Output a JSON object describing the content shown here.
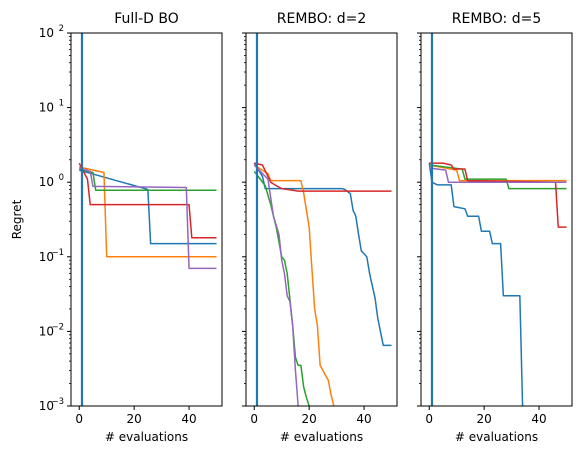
{
  "chart_data": [
    {
      "type": "line",
      "title": "Full-D BO",
      "xlabel": "# evaluations",
      "ylabel": "Regret",
      "xlim": [
        -3,
        52
      ],
      "ylim": [
        0.001,
        100
      ],
      "yscale": "log",
      "xticks": [
        0,
        20,
        40
      ],
      "yticks": [
        0.001,
        0.01,
        0.1,
        1,
        10,
        100
      ],
      "ytick_labels": [
        [
          "10",
          "−3"
        ],
        [
          "10",
          "−2"
        ],
        [
          "10",
          "−1"
        ],
        [
          "10",
          "0"
        ],
        [
          "10",
          "1"
        ],
        [
          "10",
          "2"
        ]
      ],
      "show_ytick_labels": true,
      "vline_x": 1,
      "series": [
        {
          "color": "#1f77b4",
          "x": [
            0,
            25,
            26,
            50
          ],
          "y": [
            1.45,
            0.8,
            0.15,
            0.15
          ]
        },
        {
          "color": "#ff7f0e",
          "x": [
            0,
            9,
            10,
            50
          ],
          "y": [
            1.6,
            1.35,
            0.1,
            0.1
          ]
        },
        {
          "color": "#2ca02c",
          "x": [
            0,
            5,
            6,
            50
          ],
          "y": [
            1.5,
            1.35,
            0.78,
            0.78
          ]
        },
        {
          "color": "#d62728",
          "x": [
            0,
            3,
            4,
            40,
            41,
            50
          ],
          "y": [
            1.8,
            1.1,
            0.5,
            0.5,
            0.18,
            0.18
          ]
        },
        {
          "color": "#9467bd",
          "x": [
            0,
            4,
            5,
            39,
            40,
            50
          ],
          "y": [
            1.55,
            1.4,
            0.88,
            0.85,
            0.07,
            0.07
          ]
        }
      ]
    },
    {
      "type": "line",
      "title": "REMBO: d=2",
      "xlabel": "# evaluations",
      "ylabel": "",
      "xlim": [
        -3,
        52
      ],
      "ylim": [
        0.001,
        100
      ],
      "yscale": "log",
      "xticks": [
        0,
        20,
        40
      ],
      "yticks": [
        0.001,
        0.01,
        0.1,
        1,
        10,
        100
      ],
      "show_ytick_labels": false,
      "vline_x": 1,
      "series": [
        {
          "color": "#1f77b4",
          "x": [
            0,
            3,
            4,
            32,
            33,
            35,
            36,
            37,
            38,
            39,
            41,
            42,
            44,
            45,
            47,
            50
          ],
          "y": [
            1.8,
            1.2,
            0.82,
            0.82,
            0.8,
            0.7,
            0.42,
            0.35,
            0.2,
            0.12,
            0.1,
            0.06,
            0.028,
            0.015,
            0.0065,
            0.0065
          ]
        },
        {
          "color": "#ff7f0e",
          "x": [
            0,
            5,
            6,
            17,
            18,
            20,
            21,
            22,
            23,
            24,
            25,
            27,
            28,
            29
          ],
          "y": [
            1.7,
            1.3,
            1.05,
            1.05,
            0.72,
            0.25,
            0.07,
            0.02,
            0.012,
            0.0035,
            0.003,
            0.0022,
            0.0014,
            0.001
          ]
        },
        {
          "color": "#2ca02c",
          "x": [
            0,
            4,
            6,
            8,
            10,
            11,
            12,
            14,
            15,
            16,
            17,
            18,
            19,
            20
          ],
          "y": [
            1.4,
            0.9,
            0.5,
            0.25,
            0.1,
            0.09,
            0.06,
            0.012,
            0.0045,
            0.0035,
            0.0035,
            0.0018,
            0.0013,
            0.001
          ]
        },
        {
          "color": "#d62728",
          "x": [
            0,
            3,
            6,
            8,
            10,
            12,
            14,
            16,
            20,
            50
          ],
          "y": [
            1.8,
            1.7,
            1.0,
            0.9,
            0.82,
            0.8,
            0.78,
            0.76,
            0.76,
            0.76
          ]
        },
        {
          "color": "#9467bd",
          "x": [
            0,
            5,
            7,
            9,
            10,
            11,
            12,
            13,
            14,
            15,
            16
          ],
          "y": [
            1.7,
            1.1,
            0.35,
            0.2,
            0.09,
            0.06,
            0.03,
            0.025,
            0.012,
            0.003,
            0.001
          ]
        }
      ]
    },
    {
      "type": "line",
      "title": "REMBO: d=5",
      "xlabel": "# evaluations",
      "ylabel": "",
      "xlim": [
        -3,
        52
      ],
      "ylim": [
        0.001,
        100
      ],
      "yscale": "log",
      "xticks": [
        0,
        20,
        40
      ],
      "yticks": [
        0.001,
        0.01,
        0.1,
        1,
        10,
        100
      ],
      "show_ytick_labels": false,
      "vline_x": 1,
      "series": [
        {
          "color": "#1f77b4",
          "x": [
            0,
            1,
            3,
            8,
            9,
            13,
            14,
            18,
            19,
            22,
            23,
            26,
            27,
            33,
            34
          ],
          "y": [
            1.8,
            1.0,
            0.92,
            0.92,
            0.47,
            0.44,
            0.35,
            0.35,
            0.22,
            0.22,
            0.15,
            0.15,
            0.03,
            0.03,
            0.001
          ]
        },
        {
          "color": "#ff7f0e",
          "x": [
            0,
            10,
            11,
            50
          ],
          "y": [
            1.7,
            1.45,
            1.05,
            1.05
          ]
        },
        {
          "color": "#2ca02c",
          "x": [
            0,
            12,
            13,
            28,
            29,
            50
          ],
          "y": [
            1.7,
            1.5,
            1.1,
            1.1,
            0.82,
            0.82
          ]
        },
        {
          "color": "#d62728",
          "x": [
            0,
            5,
            8,
            9,
            13,
            14,
            46,
            47,
            50
          ],
          "y": [
            1.8,
            1.8,
            1.7,
            1.5,
            1.5,
            1.05,
            1.0,
            0.25,
            0.25
          ]
        },
        {
          "color": "#9467bd",
          "x": [
            0,
            6,
            7,
            50
          ],
          "y": [
            1.55,
            1.45,
            1.0,
            1.0
          ]
        }
      ]
    }
  ]
}
